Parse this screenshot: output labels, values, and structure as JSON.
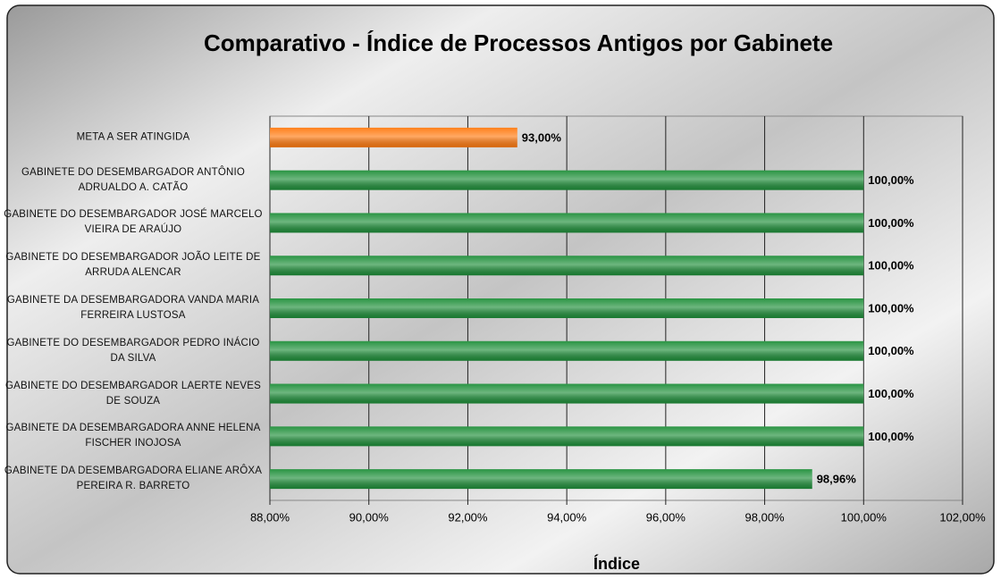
{
  "chart_data": {
    "type": "bar",
    "orientation": "horizontal",
    "title": "Comparativo - Índice de Processos Antigos por Gabinete",
    "x_label": "Índice",
    "categories": [
      "META A SER ATINGIDA",
      "GABINETE DO DESEMBARGADOR ANTÔNIO ADRUALDO A. CATÃO",
      "GABINETE DO DESEMBARGADOR JOSÉ MARCELO VIEIRA DE ARAÚJO",
      "GABINETE DO DESEMBARGADOR JOÃO LEITE DE ARRUDA ALENCAR",
      "GABINETE DA DESEMBARGADORA VANDA MARIA FERREIRA LUSTOSA",
      "GABINETE DO DESEMBARGADOR PEDRO INÁCIO DA SILVA",
      "GABINETE DO DESEMBARGADOR LAERTE NEVES DE SOUZA",
      "GABINETE DA DESEMBARGADORA ANNE HELENA FISCHER INOJOSA",
      "GABINETE DA DESEMBARGADORA ELIANE ARÔXA PEREIRA R. BARRETO"
    ],
    "values": [
      93,
      100,
      100,
      100,
      100,
      100,
      100,
      100,
      98.96
    ],
    "value_labels": [
      "93,00%",
      "100,00%",
      "100,00%",
      "100,00%",
      "100,00%",
      "100,00%",
      "100,00%",
      "100,00%",
      "98,96%"
    ],
    "colors": [
      "#ff7a10",
      "#1f8f3a",
      "#1f8f3a",
      "#1f8f3a",
      "#1f8f3a",
      "#1f8f3a",
      "#1f8f3a",
      "#1f8f3a",
      "#1f8f3a"
    ],
    "xlim": [
      88,
      102
    ],
    "xticks": [
      {
        "value": 88,
        "label": "88,00%"
      },
      {
        "value": 90,
        "label": "90,00%"
      },
      {
        "value": 92,
        "label": "92,00%"
      },
      {
        "value": 94,
        "label": "94,00%"
      },
      {
        "value": 96,
        "label": "96,00%"
      },
      {
        "value": 98,
        "label": "98,00%"
      },
      {
        "value": 100,
        "label": "100,00%"
      },
      {
        "value": 102,
        "label": "102,00%"
      }
    ],
    "grid": true
  }
}
